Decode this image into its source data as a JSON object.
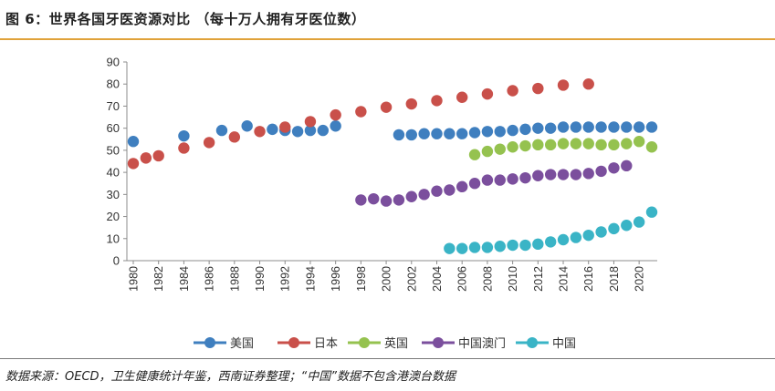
{
  "figure": {
    "title": "图 6：世界各国牙医资源对比 （每十万人拥有牙医位数）",
    "source": "数据来源：OECD，卫生健康统计年鉴，西南证券整理；“中国”数据不包含港澳台数据"
  },
  "chart_data": {
    "type": "scatter",
    "title": "世界各国牙医资源对比（每十万人拥有牙医位数）",
    "xlabel": "",
    "ylabel": "",
    "xlim": [
      1980,
      2021
    ],
    "ylim": [
      0,
      90
    ],
    "yticks": [
      "0",
      "10",
      "20",
      "30",
      "40",
      "50",
      "60",
      "70",
      "80",
      "90"
    ],
    "xticks": [
      "1980",
      "1982",
      "1984",
      "1986",
      "1988",
      "1990",
      "1992",
      "1994",
      "1996",
      "1998",
      "2000",
      "2002",
      "2004",
      "2006",
      "2008",
      "2010",
      "2012",
      "2014",
      "2016",
      "2018",
      "2020"
    ],
    "grid": false,
    "legend_position": "bottom",
    "series": [
      {
        "name": "美国",
        "color": "#3f7fbf",
        "x": [
          1980,
          1984,
          1987,
          1989,
          1991,
          1992,
          1993,
          1994,
          1995,
          1996,
          2001,
          2002,
          2003,
          2004,
          2005,
          2006,
          2007,
          2008,
          2009,
          2010,
          2011,
          2012,
          2013,
          2014,
          2015,
          2016,
          2017,
          2018,
          2019,
          2020,
          2021
        ],
        "y": [
          54,
          56.5,
          59,
          61,
          59.5,
          59,
          58.5,
          59,
          59,
          61,
          57,
          57,
          57.5,
          57.5,
          57.5,
          57.5,
          58,
          58.5,
          58.5,
          59,
          59.5,
          60,
          60,
          60.5,
          60.5,
          60.5,
          60.5,
          60.5,
          60.5,
          60.5,
          60.5
        ]
      },
      {
        "name": "日本",
        "color": "#c9504a",
        "x": [
          1980,
          1981,
          1982,
          1984,
          1986,
          1988,
          1990,
          1992,
          1994,
          1996,
          1998,
          2000,
          2002,
          2004,
          2006,
          2008,
          2010,
          2012,
          2014,
          2016
        ],
        "y": [
          44,
          46.5,
          47.5,
          51,
          53.5,
          56,
          58.5,
          60.5,
          63,
          66,
          67.5,
          69.5,
          71,
          72.5,
          74,
          75.5,
          77,
          78,
          79.5,
          80
        ]
      },
      {
        "name": "英国",
        "color": "#95c24f",
        "x": [
          2007,
          2008,
          2009,
          2010,
          2011,
          2012,
          2013,
          2014,
          2015,
          2016,
          2017,
          2018,
          2019,
          2020,
          2021
        ],
        "y": [
          48,
          49.5,
          50.5,
          51.5,
          52,
          52.5,
          52.5,
          53,
          53,
          53,
          52.5,
          52.5,
          53,
          54,
          51.5
        ]
      },
      {
        "name": "中国澳门",
        "color": "#7b4f9d",
        "x": [
          1998,
          1999,
          2000,
          2001,
          2002,
          2003,
          2004,
          2005,
          2006,
          2007,
          2008,
          2009,
          2010,
          2011,
          2012,
          2013,
          2014,
          2015,
          2016,
          2017,
          2018,
          2019
        ],
        "y": [
          27.5,
          28,
          27,
          27.5,
          29,
          30,
          31.5,
          32,
          33.5,
          35,
          36.5,
          36.5,
          37,
          37.5,
          38.5,
          39,
          39,
          39,
          39.5,
          40.5,
          42,
          43
        ]
      },
      {
        "name": "中国",
        "color": "#3ab4c6",
        "x": [
          2005,
          2006,
          2007,
          2008,
          2009,
          2010,
          2011,
          2012,
          2013,
          2014,
          2015,
          2016,
          2017,
          2018,
          2019,
          2020,
          2021
        ],
        "y": [
          5.5,
          5.5,
          6,
          6,
          6.5,
          7,
          7,
          7.5,
          8.5,
          9.5,
          10.5,
          11.5,
          13,
          14.5,
          16,
          17.5,
          22
        ]
      }
    ]
  }
}
